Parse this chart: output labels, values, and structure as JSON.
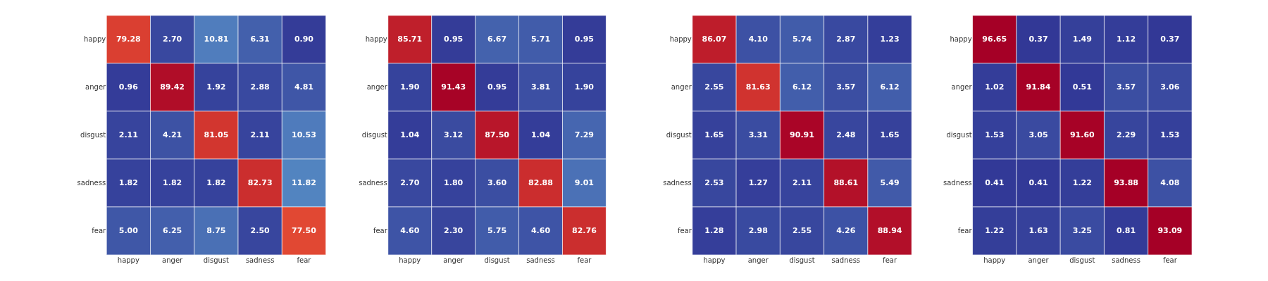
{
  "chart_data": [
    {
      "type": "heatmap",
      "categories": [
        "happy",
        "anger",
        "disgust",
        "sadness",
        "fear"
      ],
      "y_categories": [
        "happy",
        "anger",
        "disgust",
        "sadness",
        "fear"
      ],
      "cells": [
        [
          79.28,
          2.7,
          10.81,
          6.31,
          0.9
        ],
        [
          0.96,
          89.42,
          1.92,
          2.88,
          4.81
        ],
        [
          2.11,
          4.21,
          81.05,
          2.11,
          10.53
        ],
        [
          1.82,
          1.82,
          1.82,
          82.73,
          11.82
        ],
        [
          5.0,
          6.25,
          8.75,
          2.5,
          77.5
        ]
      ],
      "cell_labels": [
        [
          "79.28",
          "2.70",
          "10.81",
          "6.31",
          "0.90"
        ],
        [
          "0.96",
          "89.42",
          "1.92",
          "2.88",
          "4.81"
        ],
        [
          "2.11",
          "4.21",
          "81.05",
          "2.11",
          "10.53"
        ],
        [
          "1.82",
          "1.82",
          "1.82",
          "82.73",
          "11.82"
        ],
        [
          "5.00",
          "6.25",
          "8.75",
          "2.50",
          "77.50"
        ]
      ]
    },
    {
      "type": "heatmap",
      "categories": [
        "happy",
        "anger",
        "disgust",
        "sadness",
        "fear"
      ],
      "y_categories": [
        "happy",
        "anger",
        "disgust",
        "sadness",
        "fear"
      ],
      "cells": [
        [
          85.71,
          0.95,
          6.67,
          5.71,
          0.95
        ],
        [
          1.9,
          91.43,
          0.95,
          3.81,
          1.9
        ],
        [
          1.04,
          3.12,
          87.5,
          1.04,
          7.29
        ],
        [
          2.7,
          1.8,
          3.6,
          82.88,
          9.01
        ],
        [
          4.6,
          2.3,
          5.75,
          4.6,
          82.76
        ]
      ],
      "cell_labels": [
        [
          "85.71",
          "0.95",
          "6.67",
          "5.71",
          "0.95"
        ],
        [
          "1.90",
          "91.43",
          "0.95",
          "3.81",
          "1.90"
        ],
        [
          "1.04",
          "3.12",
          "87.50",
          "1.04",
          "7.29"
        ],
        [
          "2.70",
          "1.80",
          "3.60",
          "82.88",
          "9.01"
        ],
        [
          "4.60",
          "2.30",
          "5.75",
          "4.60",
          "82.76"
        ]
      ]
    },
    {
      "type": "heatmap",
      "categories": [
        "happy",
        "anger",
        "disgust",
        "sadness",
        "fear"
      ],
      "y_categories": [
        "happy",
        "anger",
        "disgust",
        "sadness",
        "fear"
      ],
      "cells": [
        [
          86.07,
          4.1,
          5.74,
          2.87,
          1.23
        ],
        [
          2.55,
          81.63,
          6.12,
          3.57,
          6.12
        ],
        [
          1.65,
          3.31,
          90.91,
          2.48,
          1.65
        ],
        [
          2.53,
          1.27,
          2.11,
          88.61,
          5.49
        ],
        [
          1.28,
          2.98,
          2.55,
          4.26,
          88.94
        ]
      ],
      "cell_labels": [
        [
          "86.07",
          "4.10",
          "5.74",
          "2.87",
          "1.23"
        ],
        [
          "2.55",
          "81.63",
          "6.12",
          "3.57",
          "6.12"
        ],
        [
          "1.65",
          "3.31",
          "90.91",
          "2.48",
          "1.65"
        ],
        [
          "2.53",
          "1.27",
          "2.11",
          "88.61",
          "5.49"
        ],
        [
          "1.28",
          "2.98",
          "2.55",
          "4.26",
          "88.94"
        ]
      ]
    },
    {
      "type": "heatmap",
      "categories": [
        "happy",
        "anger",
        "disgust",
        "sadness",
        "fear"
      ],
      "y_categories": [
        "happy",
        "anger",
        "disgust",
        "sadness",
        "fear"
      ],
      "cells": [
        [
          96.65,
          0.37,
          1.49,
          1.12,
          0.37
        ],
        [
          1.02,
          91.84,
          0.51,
          3.57,
          3.06
        ],
        [
          1.53,
          3.05,
          91.6,
          2.29,
          1.53
        ],
        [
          0.41,
          0.41,
          1.22,
          93.88,
          4.08
        ],
        [
          1.22,
          1.63,
          3.25,
          0.81,
          93.09
        ]
      ],
      "cell_labels": [
        [
          "96.65",
          "0.37",
          "1.49",
          "1.12",
          "0.37"
        ],
        [
          "1.02",
          "91.84",
          "0.51",
          "3.57",
          "3.06"
        ],
        [
          "1.53",
          "3.05",
          "91.60",
          "2.29",
          "1.53"
        ],
        [
          "0.41",
          "0.41",
          "1.22",
          "93.88",
          "4.08"
        ],
        [
          "1.22",
          "1.63",
          "3.25",
          "0.81",
          "93.09"
        ]
      ]
    }
  ]
}
